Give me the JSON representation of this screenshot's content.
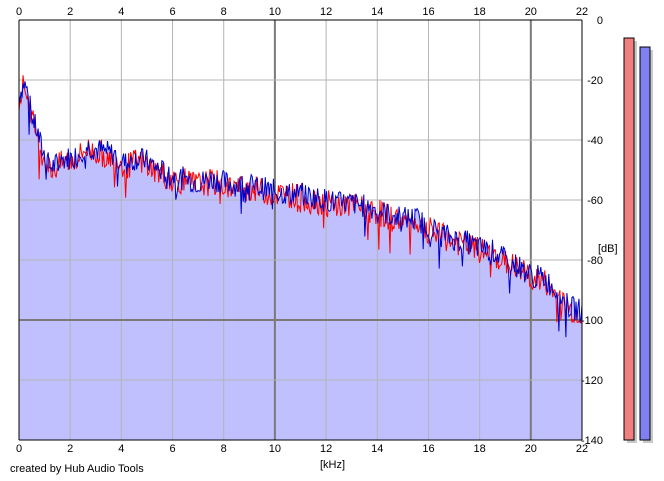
{
  "credit": "created by Hub Audio Tools",
  "chart_data": {
    "type": "area",
    "xlabel": "[kHz]",
    "ylabel": "[dB]",
    "xlim": [
      0,
      22
    ],
    "ylim": [
      -140,
      0
    ],
    "x_ticks": [
      "0",
      "2",
      "4",
      "6",
      "8",
      "10",
      "12",
      "14",
      "16",
      "18",
      "20",
      "22"
    ],
    "y_ticks": [
      "0",
      "-20",
      "-40",
      "-60",
      "-80",
      "-100",
      "-120",
      "-140"
    ],
    "grid": true,
    "colors": {
      "fill": "#c0c0ff",
      "red_series": "#ff0000",
      "blue_series": "#0000c8",
      "grid": "#b4b4b4",
      "major_grid": "#7a7a7a"
    },
    "x": [
      0,
      0.1,
      0.2,
      0.3,
      0.5,
      0.7,
      0.9,
      1.2,
      1.5,
      1.8,
      2.0,
      2.3,
      2.6,
      3.0,
      3.4,
      3.8,
      4.2,
      4.6,
      5.0,
      5.5,
      6.0,
      6.5,
      7.0,
      7.5,
      8.0,
      8.5,
      9.0,
      9.5,
      10.0,
      10.5,
      11.0,
      11.5,
      12.0,
      12.5,
      13.0,
      13.5,
      14.0,
      14.5,
      15.0,
      15.5,
      16.0,
      16.5,
      17.0,
      17.5,
      18.0,
      18.5,
      19.0,
      19.5,
      20.0,
      20.5,
      21.0,
      21.3,
      21.6,
      22.0
    ],
    "series": [
      {
        "values": [
          -26,
          -24,
          -21,
          -24,
          -33,
          -38,
          -44,
          -50,
          -49,
          -47,
          -47,
          -46,
          -43,
          -44,
          -45,
          -46,
          -49,
          -47,
          -48,
          -51,
          -53,
          -54,
          -55,
          -54,
          -55,
          -56,
          -56,
          -57,
          -58,
          -58,
          -59,
          -60,
          -61,
          -62,
          -62,
          -63,
          -64,
          -66,
          -67,
          -67,
          -70,
          -72,
          -74,
          -75,
          -77,
          -78,
          -81,
          -83,
          -86,
          -87,
          -92,
          -95,
          -97,
          -98
        ]
      },
      {
        "values": [
          -25,
          -23,
          -21,
          -23,
          -32,
          -37,
          -43,
          -49,
          -48,
          -46,
          -46,
          -45,
          -42,
          -43,
          -44,
          -45,
          -48,
          -46,
          -47,
          -50,
          -52,
          -53,
          -54,
          -53,
          -54,
          -55,
          -55,
          -56,
          -57,
          -58,
          -58,
          -59,
          -60,
          -61,
          -61,
          -62,
          -63,
          -65,
          -66,
          -66,
          -69,
          -71,
          -73,
          -74,
          -76,
          -77,
          -80,
          -82,
          -85,
          -86,
          -90,
          -94,
          -96,
          -97
        ]
      }
    ],
    "level_meters": [
      -6,
      -9
    ]
  }
}
